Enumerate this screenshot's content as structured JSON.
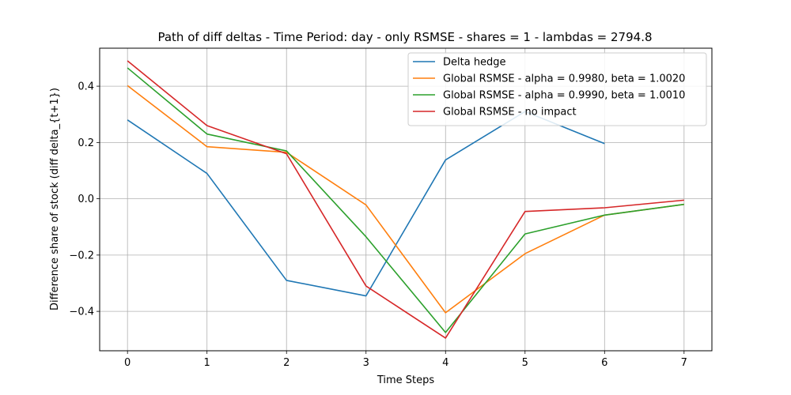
{
  "chart_data": {
    "type": "line",
    "title": "Path of diff deltas - Time Period: day - only RSMSE - shares = 1 - lambdas = 2794.8",
    "xlabel": "Time Steps",
    "ylabel": "Difference share of stock (diff delta_{t+1})",
    "xlim": [
      -0.35,
      7.35
    ],
    "ylim": [
      -0.54,
      0.535
    ],
    "xticks": [
      0,
      1,
      2,
      3,
      4,
      5,
      6,
      7
    ],
    "yticks": [
      -0.4,
      -0.2,
      0.0,
      0.2,
      0.4
    ],
    "ytick_labels": [
      "−0.4",
      "−0.2",
      "0.0",
      "0.2",
      "0.4"
    ],
    "grid": true,
    "legend_position": "top-right",
    "series": [
      {
        "name": "Delta hedge",
        "color": "#1f77b4",
        "x": [
          0,
          1,
          2,
          3,
          4,
          5,
          6
        ],
        "y": [
          0.28,
          0.09,
          -0.29,
          -0.345,
          0.138,
          0.31,
          0.196
        ]
      },
      {
        "name": "Global RSMSE - alpha = 0.9980, beta = 1.0020",
        "color": "#ff7f0e",
        "x": [
          0,
          1,
          2,
          3,
          4,
          5,
          6,
          7
        ],
        "y": [
          0.402,
          0.185,
          0.165,
          -0.022,
          -0.405,
          -0.195,
          -0.058,
          -0.02
        ]
      },
      {
        "name": "Global RSMSE - alpha = 0.9990, beta = 1.0010",
        "color": "#2ca02c",
        "x": [
          0,
          1,
          2,
          3,
          4,
          5,
          6,
          7
        ],
        "y": [
          0.465,
          0.23,
          0.17,
          -0.135,
          -0.475,
          -0.125,
          -0.058,
          -0.02
        ]
      },
      {
        "name": "Global RSMSE - no impact",
        "color": "#d62728",
        "x": [
          0,
          1,
          2,
          3,
          4,
          5,
          6,
          7
        ],
        "y": [
          0.49,
          0.26,
          0.16,
          -0.31,
          -0.495,
          -0.045,
          -0.032,
          -0.005
        ]
      }
    ]
  }
}
